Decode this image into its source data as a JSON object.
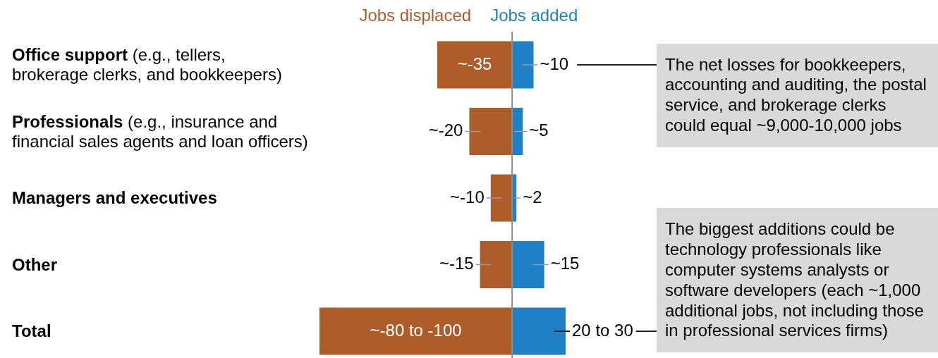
{
  "chart_data": {
    "type": "bar",
    "orientation": "horizontal",
    "stacked": true,
    "legend": "top",
    "categories": [
      "Office support (e.g., tellers,\nbrokerage clerks, and bookkeepers)",
      "Professionals (e.g., insurance and\nfinancial sales agents and loan officers)",
      "Managers and executives",
      "Other",
      "Total"
    ],
    "series": [
      {
        "name": "Jobs displaced",
        "color": "#ae5c29",
        "values": [
          -35,
          -20,
          -10,
          -15,
          -90
        ],
        "value_labels": [
          "~-35",
          "~-20",
          "~-10",
          "~-15",
          "~-80 to -100"
        ]
      },
      {
        "name": "Jobs added",
        "color": "#1f80c5",
        "values": [
          10,
          5,
          2,
          15,
          25
        ],
        "value_labels": [
          "~10",
          "~5",
          "~2",
          "~15",
          null
        ]
      }
    ],
    "annotations": [
      "The net losses for bookkeepers, accounting and auditing, the postal service, and brokerage clerks could equal ~9,000-10,000 jobs",
      "The biggest additions could be technology professionals like computer systems analysts or software developers (each ~1,000 additional jobs, not including those in professional services firms)",
      {
        "text": "20 to 30",
        "x": 25,
        "y": "Total"
      }
    ]
  }
}
